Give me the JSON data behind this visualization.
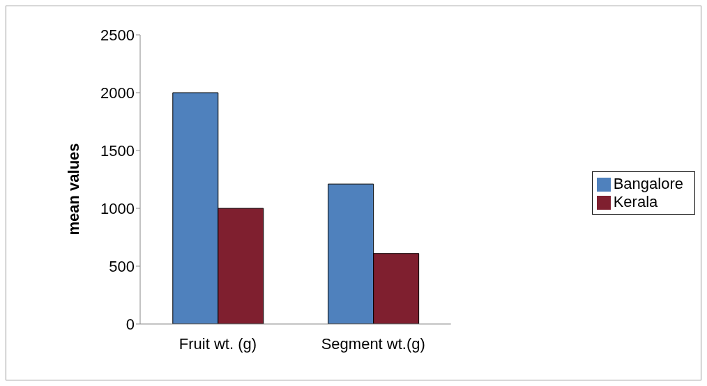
{
  "chart_data": {
    "type": "bar",
    "ylabel": "mean values",
    "categories": [
      "Fruit wt. (g)",
      "Segment wt.(g)"
    ],
    "series": [
      {
        "name": "Bangalore",
        "color": "#4f81bd",
        "values": [
          2000,
          1210
        ]
      },
      {
        "name": "Kerala",
        "color": "#7f1f2f",
        "values": [
          1000,
          610
        ]
      }
    ],
    "ylim": [
      0,
      2500
    ],
    "yticks": [
      0,
      500,
      1000,
      1500,
      2000,
      2500
    ],
    "grid": false,
    "legend": "right"
  }
}
